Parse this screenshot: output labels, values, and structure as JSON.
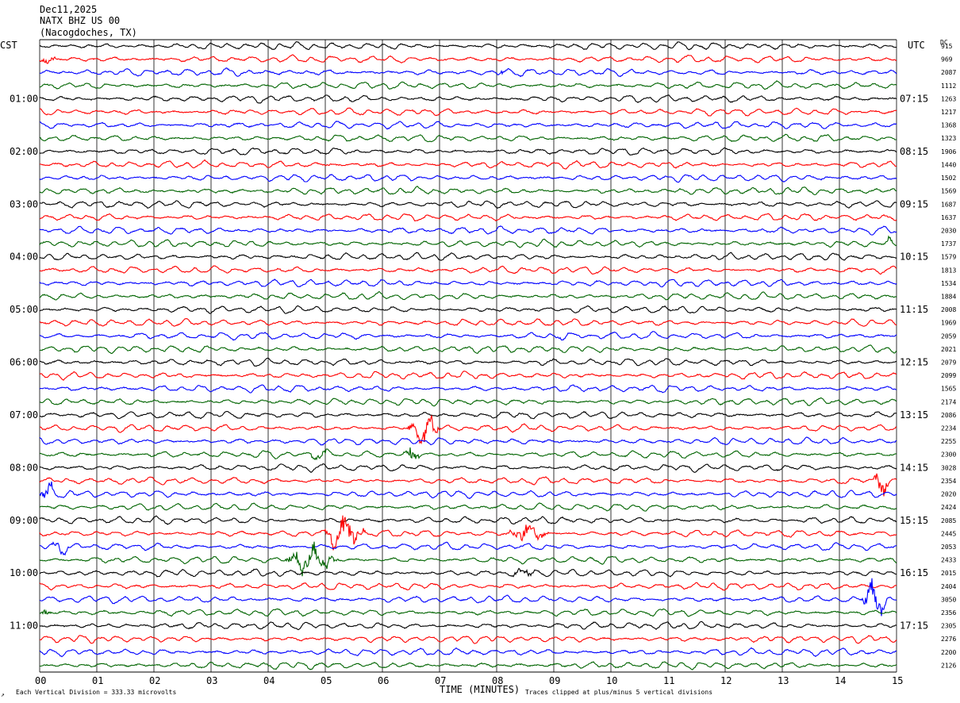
{
  "header": {
    "date": "Dec11,2025",
    "station": "NATX BHZ US 00",
    "location": "(Nacogdoches, TX)"
  },
  "left_tz": "CST",
  "right_tz": "UTC",
  "dc_label": "DC",
  "footer": {
    "scale_note": "Each Vertical Division =  333.33 microvolts",
    "clip_note": "Traces clipped at plus/minus 5 vertical divisions",
    "corner_mark": "↗"
  },
  "chart_data": {
    "type": "line",
    "xlabel": "TIME (MINUTES)",
    "xlim": [
      0,
      15
    ],
    "x_ticks": [
      "00",
      "01",
      "02",
      "03",
      "04",
      "05",
      "06",
      "07",
      "08",
      "09",
      "10",
      "11",
      "12",
      "13",
      "14",
      "15"
    ],
    "grid": true,
    "rows": 48,
    "trace_colors": [
      "#000000",
      "#ff0000",
      "#0000ff",
      "#006400"
    ],
    "left_time_labels": [
      "01:00",
      "02:00",
      "03:00",
      "04:00",
      "05:00",
      "06:00",
      "07:00",
      "08:00",
      "09:00",
      "10:00",
      "11:00"
    ],
    "right_time_labels": [
      "07:15",
      "08:15",
      "09:15",
      "10:15",
      "11:15",
      "12:15",
      "13:15",
      "14:15",
      "15:15",
      "16:15",
      "17:15"
    ],
    "time_label_first_row": 4,
    "time_label_row_step": 4,
    "dc_offsets": [
      "915",
      "969",
      "2087",
      "1112",
      "1263",
      "1217",
      "1368",
      "1323",
      "1906",
      "1440",
      "1502",
      "1569",
      "1687",
      "1637",
      "2030",
      "1737",
      "1579",
      "1813",
      "1534",
      "1884",
      "2008",
      "1969",
      "2059",
      "2021",
      "2079",
      "2099",
      "1565",
      "2174",
      "2086",
      "2234",
      "2255",
      "2300",
      "3028",
      "2354",
      "2020",
      "2424",
      "2085",
      "2445",
      "2053",
      "2433",
      "2015",
      "2404",
      "3050",
      "2356",
      "2305",
      "2276",
      "2200",
      "2126"
    ],
    "events": [
      {
        "row": 1,
        "start_min": 0.0,
        "end_min": 0.4,
        "amp": 2.0
      },
      {
        "row": 2,
        "start_min": 8.0,
        "end_min": 8.3,
        "amp": 1.7
      },
      {
        "row": 15,
        "start_min": 14.8,
        "end_min": 15.0,
        "amp": 2.0
      },
      {
        "row": 22,
        "start_min": 9.0,
        "end_min": 9.4,
        "amp": 1.5
      },
      {
        "row": 29,
        "start_min": 6.4,
        "end_min": 7.3,
        "amp": 4.0
      },
      {
        "row": 31,
        "start_min": 4.7,
        "end_min": 5.3,
        "amp": 2.0
      },
      {
        "row": 31,
        "start_min": 6.35,
        "end_min": 6.8,
        "amp": 3.0
      },
      {
        "row": 33,
        "start_min": 14.6,
        "end_min": 15.0,
        "amp": 4.5
      },
      {
        "row": 34,
        "start_min": 0.0,
        "end_min": 0.4,
        "amp": 3.5
      },
      {
        "row": 37,
        "start_min": 5.0,
        "end_min": 6.0,
        "amp": 5.0
      },
      {
        "row": 37,
        "start_min": 8.2,
        "end_min": 9.2,
        "amp": 3.0
      },
      {
        "row": 38,
        "start_min": 0.2,
        "end_min": 0.7,
        "amp": 2.0
      },
      {
        "row": 39,
        "start_min": 4.3,
        "end_min": 5.6,
        "amp": 4.0
      },
      {
        "row": 40,
        "start_min": 8.2,
        "end_min": 9.0,
        "amp": 2.0
      },
      {
        "row": 42,
        "start_min": 14.4,
        "end_min": 15.0,
        "amp": 4.5
      },
      {
        "row": 43,
        "start_min": 0.0,
        "end_min": 0.3,
        "amp": 2.0
      }
    ]
  }
}
